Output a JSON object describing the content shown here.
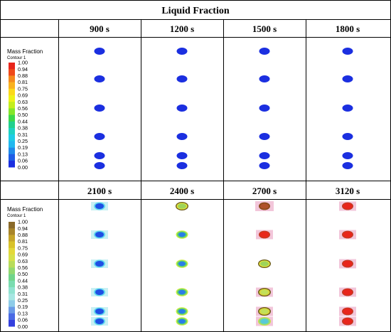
{
  "table": {
    "title": "Liquid Fraction",
    "top_row": {
      "times": [
        "900 s",
        "1200 s",
        "1500 s",
        "1800 s"
      ],
      "legend": {
        "title": "Mass Fraction",
        "subtitle": "Contour 1",
        "ticks": [
          "1.00",
          "0.94",
          "0.88",
          "0.81",
          "0.75",
          "0.69",
          "0.63",
          "0.56",
          "0.50",
          "0.44",
          "0.38",
          "0.31",
          "0.25",
          "0.19",
          "0.13",
          "0.06",
          "0.00"
        ],
        "colors": [
          "#e8251c",
          "#f04a1a",
          "#f58a1e",
          "#f9b21f",
          "#fbd91b",
          "#eef21a",
          "#c4ee1c",
          "#84e62a",
          "#3cd84a",
          "#22d08e",
          "#1ed2c2",
          "#1ecce6",
          "#21b8ef",
          "#1f8aea",
          "#1e5de6",
          "#1b2fe0"
        ]
      }
    },
    "bottom_row": {
      "times": [
        "2100 s",
        "2400 s",
        "2700 s",
        "3120 s"
      ],
      "legend": {
        "title": "Mass Fraction",
        "subtitle": "Contour 1",
        "ticks": [
          "1.00",
          "0.94",
          "0.88",
          "0.81",
          "0.75",
          "0.69",
          "0.63",
          "0.56",
          "0.50",
          "0.44",
          "0.38",
          "0.31",
          "0.25",
          "0.19",
          "0.13",
          "0.06",
          "0.00"
        ],
        "colors": [
          "#8a6a2a",
          "#a8852a",
          "#c6a52a",
          "#d8c22a",
          "#e2d83a",
          "#d6e04a",
          "#b8dc5a",
          "#92d870",
          "#70d48a",
          "#7adcb0",
          "#90e2d0",
          "#a6e6e2",
          "#8ecce8",
          "#6a9ae6",
          "#4a6ae4",
          "#3440de"
        ]
      }
    }
  },
  "colors": {
    "solid": "#1b2fe0",
    "melted": "#e8251c",
    "mushy": "#bfe43a",
    "rim_dark": "#6a5a1a",
    "pink_halo": "#f2c6da",
    "cyan_halo": "#c8f0f4"
  },
  "panels": {
    "top": [
      {
        "time": "900 s",
        "blobs": [
          "solid",
          "solid",
          "solid",
          "solid",
          "solid",
          "solid"
        ]
      },
      {
        "time": "1200 s",
        "blobs": [
          "solid",
          "solid",
          "solid",
          "solid",
          "solid",
          "solid"
        ]
      },
      {
        "time": "1500 s",
        "blobs": [
          "solid",
          "solid",
          "solid",
          "solid",
          "solid",
          "solid"
        ]
      },
      {
        "time": "1800 s",
        "blobs": [
          "solid",
          "solid",
          "solid",
          "solid",
          "solid",
          "solid"
        ]
      }
    ],
    "bottom": [
      {
        "time": "2100 s",
        "blobs": [
          "cyan-ring",
          "cyan-ring",
          "cyan-ring",
          "cyan-ring",
          "cyan-ring",
          "cyan-ring"
        ]
      },
      {
        "time": "2400 s",
        "blobs": [
          "yellow-rim",
          "green-ring",
          "green-ring",
          "green-ring",
          "green-ring",
          "green-ring"
        ]
      },
      {
        "time": "2700 s",
        "blobs": [
          "melted-dark",
          "melted",
          "yellow-rim",
          "yellow-core",
          "yellow-core",
          "cyan-core"
        ]
      },
      {
        "time": "3120 s",
        "blobs": [
          "melted",
          "melted",
          "melted",
          "melted",
          "melted",
          "melted"
        ]
      }
    ]
  }
}
